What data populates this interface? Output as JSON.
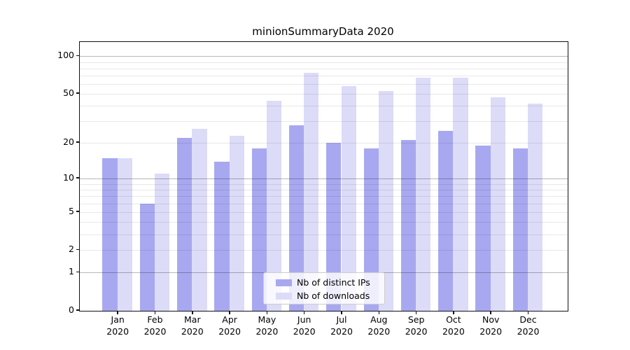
{
  "title": "minionSummaryData 2020",
  "chart_data": {
    "type": "bar",
    "title": "minionSummaryData 2020",
    "categories": [
      "Jan",
      "Feb",
      "Mar",
      "Apr",
      "May",
      "Jun",
      "Jul",
      "Aug",
      "Sep",
      "Oct",
      "Nov",
      "Dec"
    ],
    "x_tick_year": "2020",
    "series": [
      {
        "name": "Nb of distinct IPs",
        "slug": "distinct-ips",
        "color": "#a8a8f0",
        "values": [
          15,
          6,
          22,
          14,
          18,
          28,
          20,
          18,
          21,
          25,
          19,
          18
        ]
      },
      {
        "name": "Nb of downloads",
        "slug": "downloads",
        "color": "#dcdcf8",
        "values": [
          15,
          11,
          26,
          23,
          44,
          74,
          58,
          53,
          67,
          67,
          47,
          42
        ]
      }
    ],
    "yscale": "log1p",
    "ylim": [
      0,
      130
    ],
    "y_tick_labels": [
      "0",
      "1",
      "2",
      "5",
      "10",
      "20",
      "50",
      "100"
    ],
    "major_gridlines": [
      1,
      10,
      100
    ],
    "minor_gridlines": [
      2,
      3,
      4,
      5,
      6,
      7,
      8,
      9,
      20,
      30,
      40,
      50,
      60,
      70,
      80,
      90
    ],
    "grid": true,
    "legend_position": "lower center"
  },
  "style_colors": {
    "major_grid": "rgba(0,0,0,0.28)",
    "minor_grid": "rgba(0,0,0,0.09)",
    "spine": "#111111",
    "text": "#000000"
  }
}
